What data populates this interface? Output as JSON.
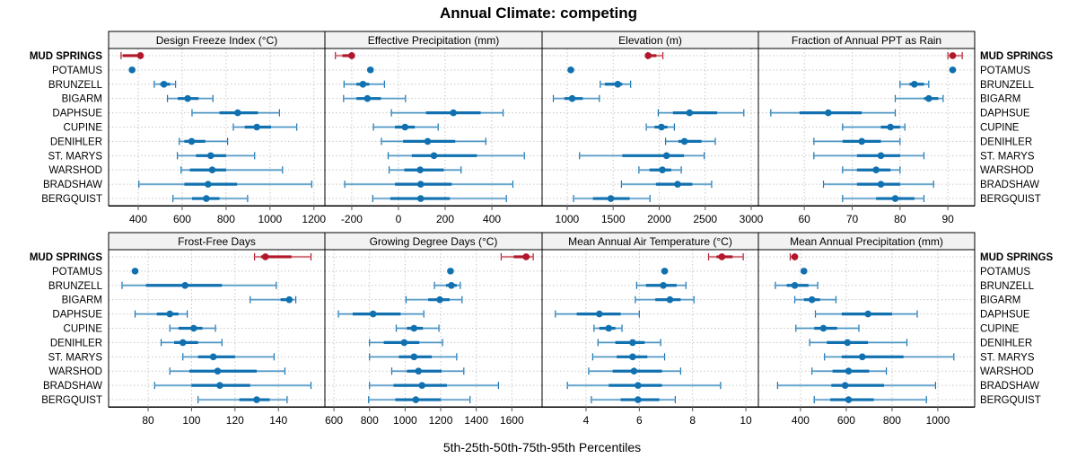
{
  "chart_data": {
    "type": "dotplot-percentiles",
    "title": "Annual Climate: competing",
    "xlabel": "5th-25th-50th-75th-95th Percentiles",
    "rows": [
      "MUD SPRINGS",
      "POTAMUS",
      "BRUNZELL",
      "BIGARM",
      "DAPHSUE",
      "CUPINE",
      "DENIHLER",
      "ST. MARYS",
      "WARSHOD",
      "BRADSHAW",
      "BERGQUIST"
    ],
    "highlight_row": "MUD SPRINGS",
    "colors": {
      "highlight": "#b2182b",
      "default": "#1171b0",
      "light_default": "#7fb2d6",
      "light_highlight": "#d67f86",
      "strip_bg": "#f2f2f2",
      "grid": "#c8c8c8"
    },
    "grid": true,
    "panels": [
      {
        "name": "Design Freeze Index (°C)",
        "xlim": [
          265,
          1250
        ],
        "ticks": [
          400,
          600,
          800,
          1000,
          1200
        ],
        "data": [
          [
            322,
            330,
            410,
            410,
            410
          ],
          [
            372,
            372,
            372,
            372,
            372
          ],
          [
            473,
            500,
            517,
            545,
            570
          ],
          [
            533,
            580,
            625,
            675,
            740
          ],
          [
            645,
            770,
            853,
            945,
            1043
          ],
          [
            833,
            885,
            940,
            1005,
            1122
          ],
          [
            587,
            610,
            643,
            705,
            807
          ],
          [
            578,
            663,
            730,
            800,
            930
          ],
          [
            595,
            635,
            737,
            800,
            1057
          ],
          [
            403,
            610,
            718,
            850,
            1190
          ],
          [
            558,
            645,
            710,
            770,
            898
          ]
        ]
      },
      {
        "name": "Effective Precipitation (mm)",
        "xlim": [
          -315,
          615
        ],
        "ticks": [
          -200,
          0,
          200,
          400
        ],
        "data": [
          [
            -270,
            -240,
            -200,
            -200,
            -200
          ],
          [
            -120,
            -120,
            -120,
            -120,
            -120
          ],
          [
            -233,
            -180,
            -152,
            -125,
            -60
          ],
          [
            -235,
            -180,
            -133,
            -75,
            30
          ],
          [
            -30,
            118,
            235,
            352,
            448
          ],
          [
            -107,
            -15,
            28,
            70,
            170
          ],
          [
            -73,
            20,
            125,
            243,
            374
          ],
          [
            -44,
            57,
            152,
            336,
            539
          ],
          [
            -40,
            25,
            93,
            194,
            268
          ],
          [
            -230,
            -15,
            95,
            228,
            490
          ],
          [
            -110,
            -35,
            95,
            220,
            462
          ]
        ]
      },
      {
        "name": "Elevation (m)",
        "xlim": [
          728,
          3078
        ],
        "ticks": [
          1000,
          1500,
          2000,
          2500,
          3000
        ],
        "data": [
          [
            1875,
            1875,
            1880,
            1970,
            2040
          ],
          [
            1040,
            1040,
            1040,
            1040,
            1040
          ],
          [
            1360,
            1410,
            1550,
            1600,
            1690
          ],
          [
            850,
            970,
            1055,
            1170,
            1350
          ],
          [
            1990,
            2150,
            2330,
            2630,
            2920
          ],
          [
            1860,
            1950,
            2025,
            2090,
            2165
          ],
          [
            2070,
            2210,
            2275,
            2460,
            2610
          ],
          [
            1135,
            1600,
            2080,
            2270,
            2490
          ],
          [
            1780,
            1895,
            2035,
            2130,
            2240
          ],
          [
            1590,
            1965,
            2200,
            2360,
            2570
          ],
          [
            1070,
            1280,
            1475,
            1680,
            1900
          ]
        ]
      },
      {
        "name": "Fraction of Annual PPT as Rain",
        "xlim": [
          50.4,
          95.6
        ],
        "ticks": [
          60,
          70,
          80,
          90
        ],
        "data": [
          [
            90,
            90.5,
            91,
            91.5,
            93
          ],
          [
            91,
            91,
            91,
            91,
            91
          ],
          [
            80,
            82,
            83,
            85,
            86
          ],
          [
            79,
            85,
            86,
            88,
            89
          ],
          [
            53,
            59,
            65,
            72,
            79
          ],
          [
            68,
            76,
            78,
            80,
            81
          ],
          [
            62,
            68,
            72,
            76,
            80
          ],
          [
            62,
            71,
            76,
            80,
            85
          ],
          [
            68,
            71,
            75,
            78,
            80
          ],
          [
            64,
            71,
            76,
            80,
            87
          ],
          [
            68,
            75,
            79,
            83,
            85
          ]
        ]
      },
      {
        "name": "Frost-Free Days",
        "xlim": [
          61.8,
          161.4
        ],
        "ticks": [
          80,
          100,
          120,
          140
        ],
        "data": [
          [
            129,
            132,
            134,
            146,
            155
          ],
          [
            74,
            74,
            74,
            74,
            74
          ],
          [
            68,
            79,
            97,
            114,
            139
          ],
          [
            127,
            141,
            145,
            146,
            148
          ],
          [
            74,
            84,
            90,
            94,
            98
          ],
          [
            90,
            94,
            101,
            105,
            111
          ],
          [
            86,
            92,
            96,
            103,
            114
          ],
          [
            96,
            103,
            110,
            120,
            138
          ],
          [
            90,
            99,
            112,
            130,
            143
          ],
          [
            83,
            100,
            113,
            127,
            155
          ],
          [
            103,
            122,
            130,
            136,
            144
          ]
        ]
      },
      {
        "name": "Growing Degree Days (°C)",
        "xlim": [
          549,
          1770
        ],
        "ticks": [
          600,
          800,
          1000,
          1200,
          1400,
          1600
        ],
        "data": [
          [
            1540,
            1610,
            1680,
            1700,
            1720
          ],
          [
            1255,
            1255,
            1255,
            1255,
            1255
          ],
          [
            1165,
            1230,
            1260,
            1290,
            1310
          ],
          [
            1005,
            1130,
            1195,
            1250,
            1320
          ],
          [
            625,
            705,
            820,
            975,
            1105
          ],
          [
            950,
            1010,
            1050,
            1100,
            1190
          ],
          [
            800,
            880,
            995,
            1080,
            1210
          ],
          [
            800,
            965,
            1050,
            1150,
            1290
          ],
          [
            925,
            1010,
            1075,
            1205,
            1330
          ],
          [
            800,
            935,
            1095,
            1235,
            1525
          ],
          [
            795,
            945,
            1060,
            1200,
            1365
          ]
        ]
      },
      {
        "name": "Mean Annual Air Temperature (°C)",
        "xlim": [
          2.35,
          10.47
        ],
        "ticks": [
          4,
          6,
          8,
          10
        ],
        "data": [
          [
            8.6,
            8.9,
            9.1,
            9.5,
            9.9
          ],
          [
            6.95,
            6.95,
            6.95,
            6.95,
            6.95
          ],
          [
            5.9,
            6.25,
            6.9,
            7.4,
            7.75
          ],
          [
            5.85,
            6.6,
            7.15,
            7.55,
            8.05
          ],
          [
            2.85,
            3.65,
            4.5,
            5.3,
            6.0
          ],
          [
            4.3,
            4.5,
            4.85,
            5.1,
            5.35
          ],
          [
            4.45,
            5.1,
            5.75,
            6.2,
            6.8
          ],
          [
            4.25,
            5.15,
            5.75,
            6.3,
            6.95
          ],
          [
            4.1,
            5.0,
            5.8,
            6.85,
            7.55
          ],
          [
            3.3,
            4.85,
            5.95,
            6.85,
            9.05
          ],
          [
            4.2,
            5.3,
            5.95,
            6.75,
            7.35
          ]
        ]
      },
      {
        "name": "Mean Annual Precipitation (mm)",
        "xlim": [
          216,
          1161
        ],
        "ticks": [
          400,
          600,
          800,
          1000
        ],
        "data": [
          [
            355,
            360,
            375,
            375,
            375
          ],
          [
            415,
            415,
            415,
            415,
            415
          ],
          [
            290,
            340,
            375,
            435,
            475
          ],
          [
            375,
            415,
            450,
            485,
            555
          ],
          [
            465,
            580,
            695,
            800,
            910
          ],
          [
            380,
            460,
            500,
            560,
            655
          ],
          [
            440,
            515,
            605,
            695,
            865
          ],
          [
            505,
            580,
            670,
            850,
            1070
          ],
          [
            450,
            540,
            610,
            700,
            775
          ],
          [
            300,
            535,
            595,
            765,
            990
          ],
          [
            460,
            530,
            610,
            720,
            950
          ]
        ]
      }
    ]
  }
}
